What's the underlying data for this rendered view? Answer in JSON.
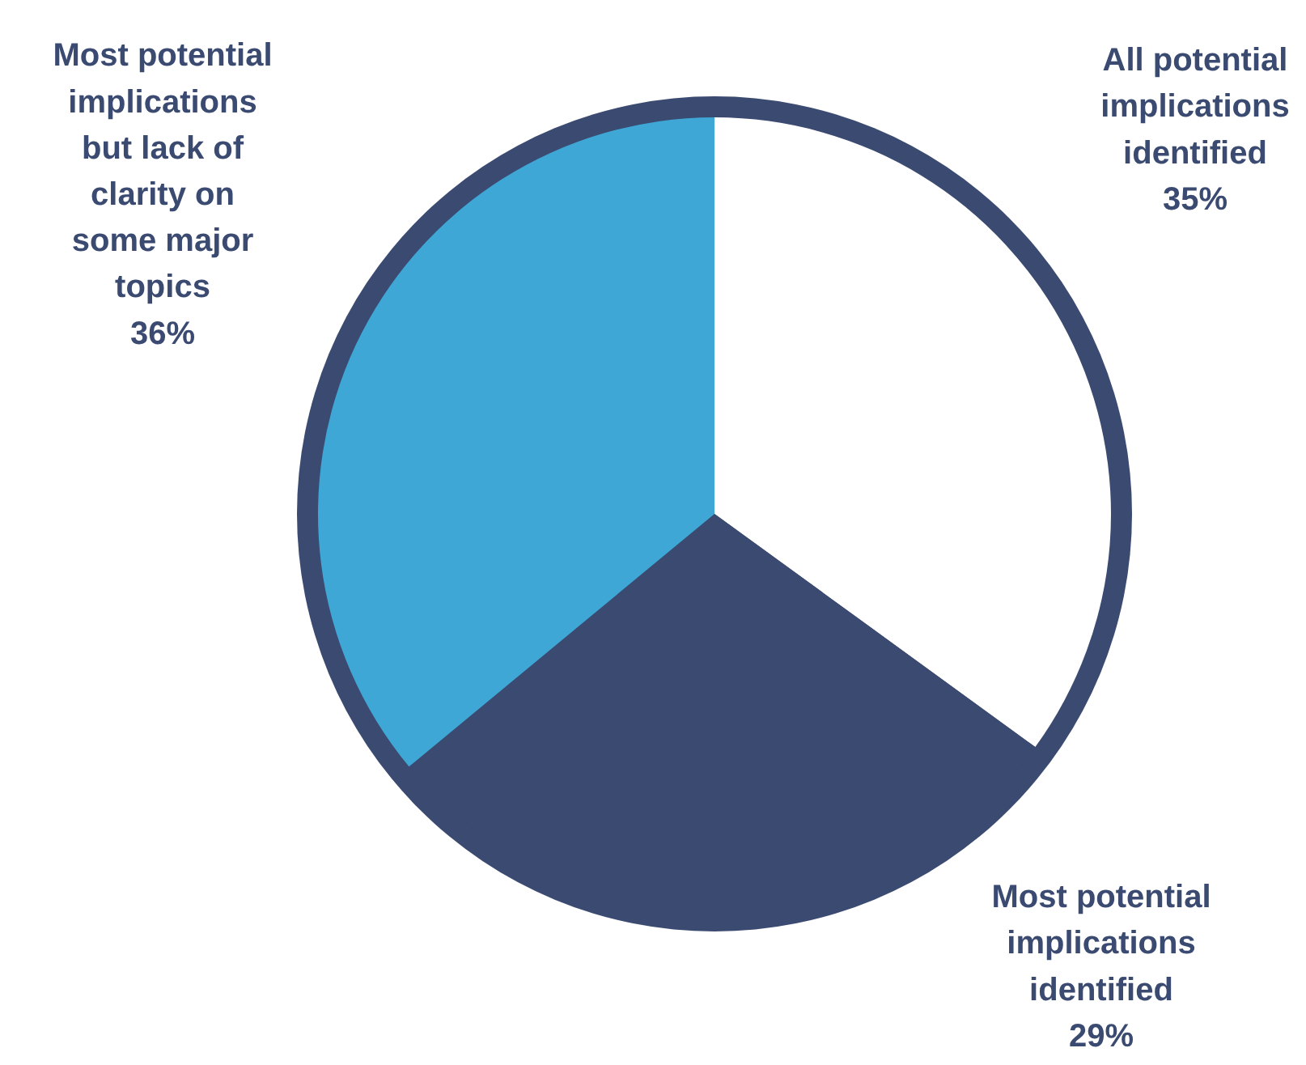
{
  "chart_data": {
    "type": "pie",
    "categories": [
      "All potential implications identified",
      "Most potential implications identified",
      "Most potential implications but lack of clarity on some major topics"
    ],
    "values": [
      35,
      29,
      36
    ],
    "colors": [
      "#ffffff",
      "#3b4a70",
      "#3fa7d6"
    ],
    "value_labels": [
      "35%",
      "29%",
      "36%"
    ]
  }
}
